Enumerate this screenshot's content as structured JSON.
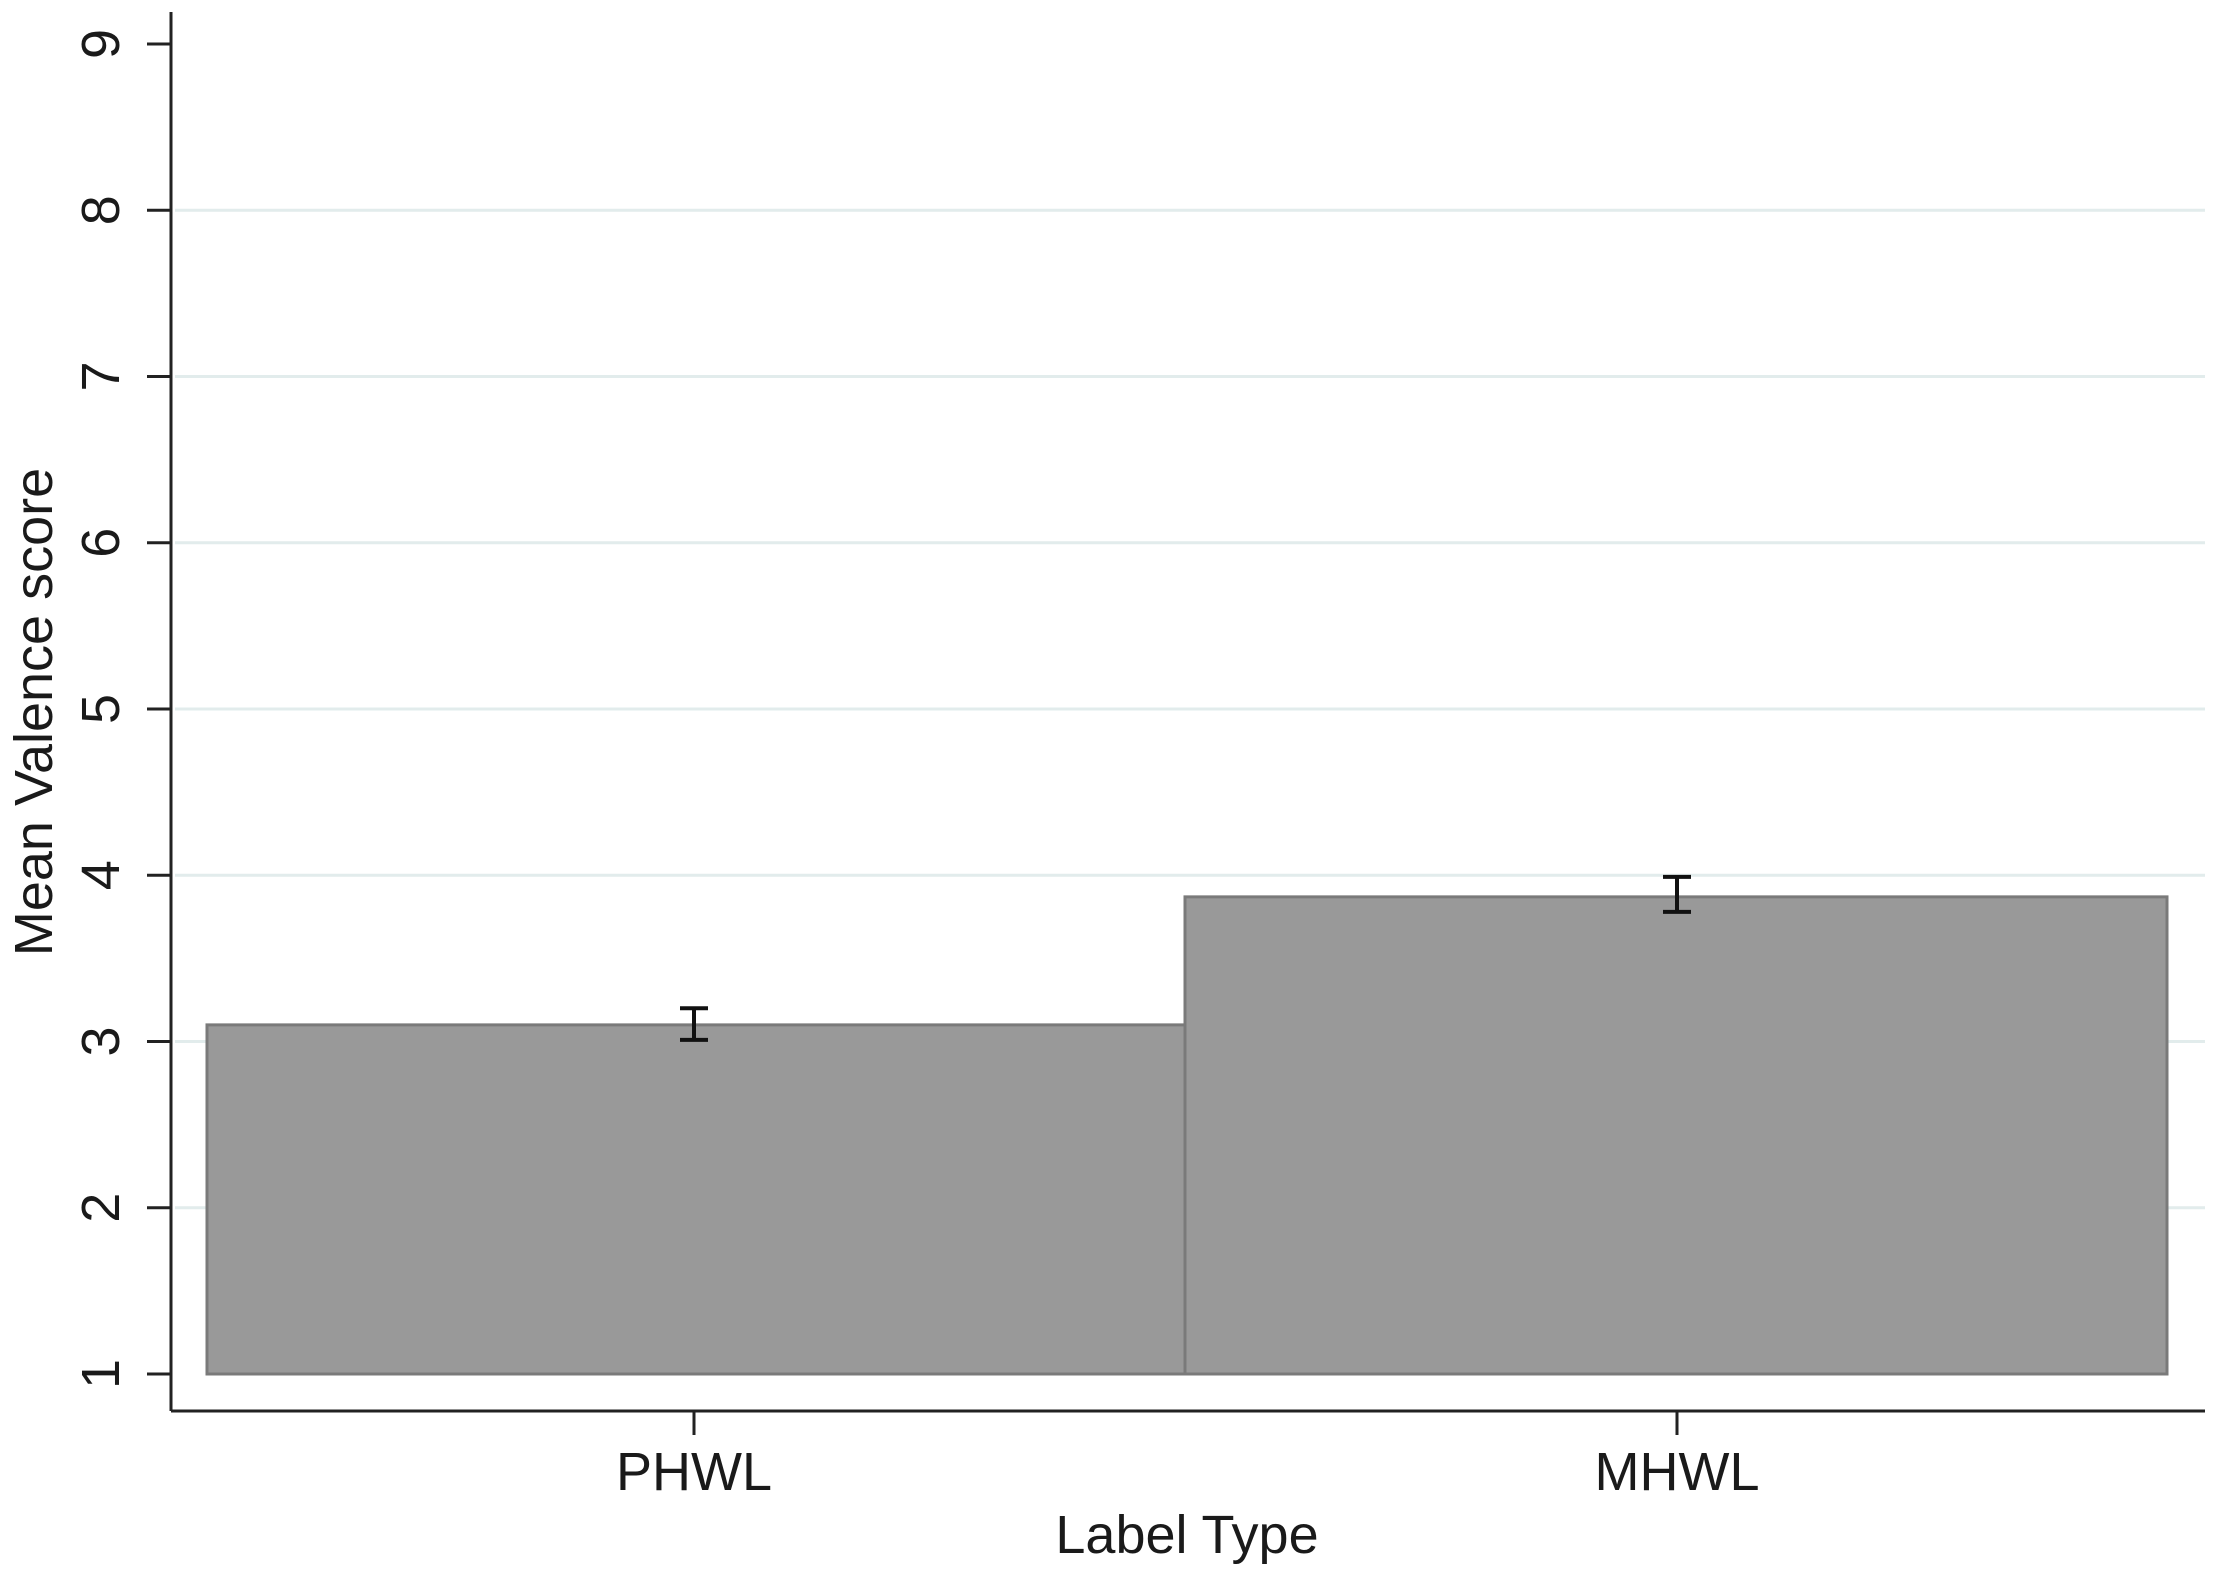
{
  "chart_data": {
    "type": "bar",
    "categories": [
      "PHWL",
      "MHWL"
    ],
    "values": [
      3.1,
      3.87
    ],
    "error_bars": [
      {
        "low": 3.01,
        "high": 3.2
      },
      {
        "low": 3.78,
        "high": 3.99
      }
    ],
    "title": "",
    "xlabel": "Label Type",
    "ylabel": "Mean Valence score",
    "ylim": [
      1,
      9
    ],
    "yticks": [
      1,
      2,
      3,
      4,
      5,
      6,
      7,
      8,
      9
    ],
    "grid": true,
    "bar_color": "#999999",
    "bar_edge_color": "#7a7a7a",
    "grid_color": "#e2ecec",
    "axis_color": "#222222"
  }
}
